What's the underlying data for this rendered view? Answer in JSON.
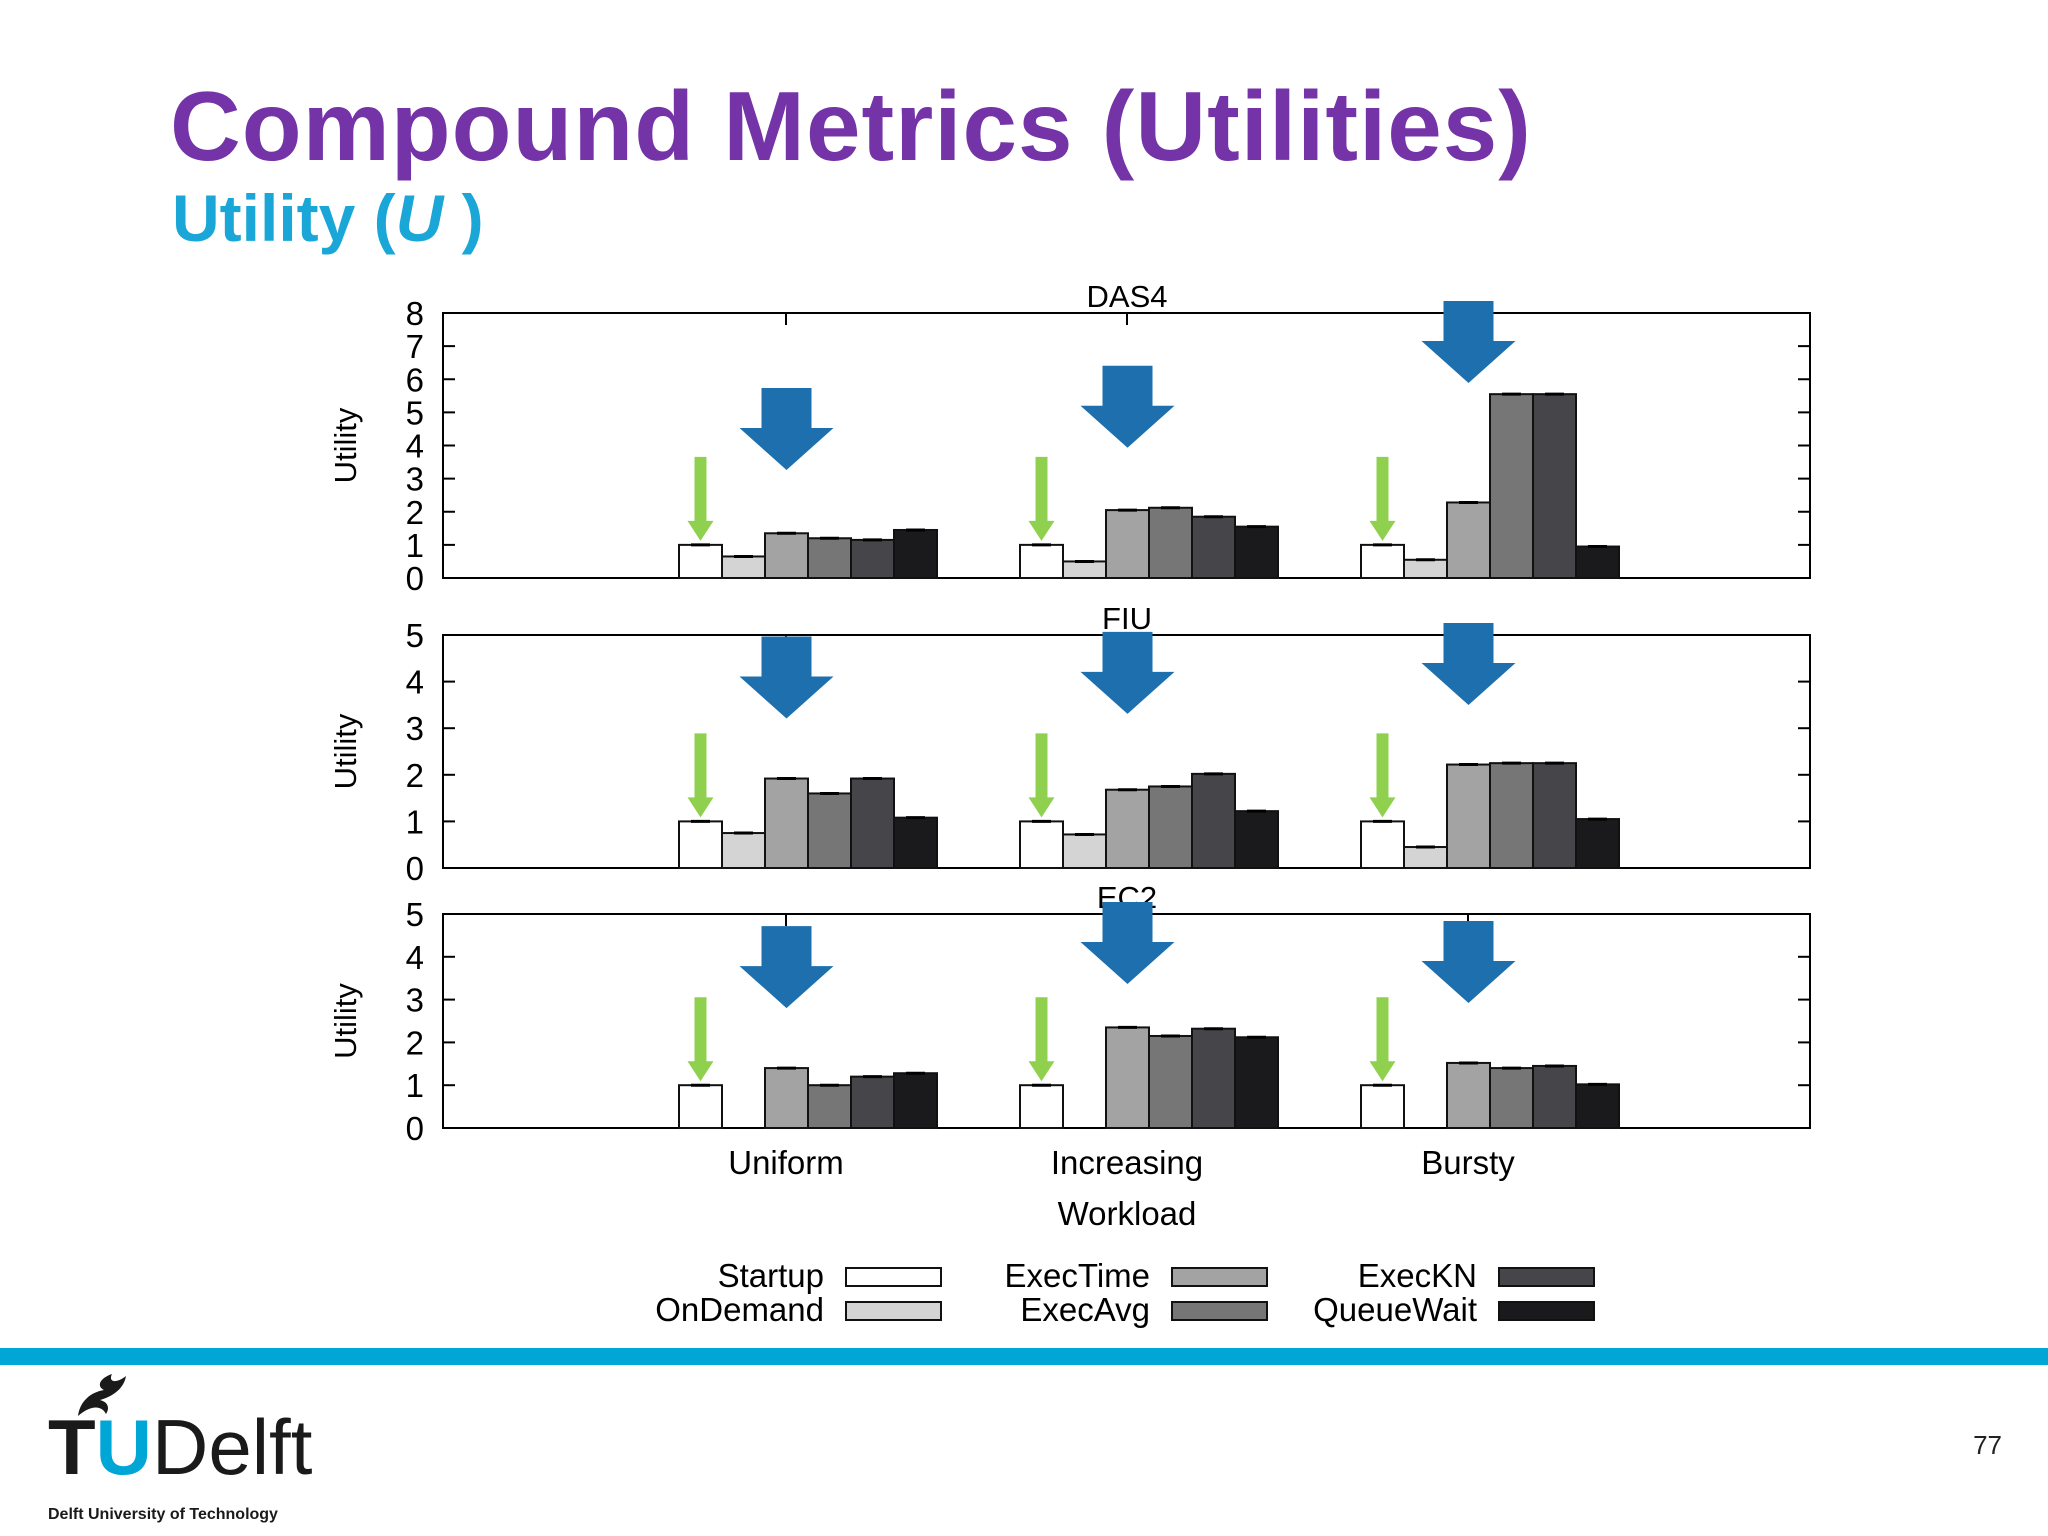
{
  "slide": {
    "title": "Compound Metrics (Utilities)",
    "subtitle_prefix": "Utility (",
    "subtitle_symbol": "U",
    "subtitle_suffix": " )",
    "page_number": "77"
  },
  "logo": {
    "tu_t": "T",
    "tu_u": "U",
    "delft": "Delft",
    "subtitle": "Delft University of Technology",
    "icon": "flame-icon"
  },
  "colors": {
    "title": "#7433a6",
    "subtitle": "#1aa7d8",
    "band": "#00a6d6",
    "blue_arrow": "#1d6fae",
    "green_arrow": "#8fd14f"
  },
  "chart_data": {
    "type": "bar",
    "xlabel": "Workload",
    "ylabel": "Utility",
    "categories": [
      "Uniform",
      "Increasing",
      "Bursty"
    ],
    "series_names": [
      "Startup",
      "OnDemand",
      "ExecTime",
      "ExecAvg",
      "ExecKN",
      "QueueWait"
    ],
    "series_colors": [
      "#ffffff",
      "#d4d4d4",
      "#a3a3a3",
      "#767676",
      "#45454a",
      "#1a1a1c"
    ],
    "legend_position": "bottom",
    "grid": false,
    "error_bars": true,
    "panels": [
      {
        "title": "DAS4",
        "ylim": [
          0,
          8
        ],
        "yticks": [
          "0",
          "1",
          "2",
          "3",
          "4",
          "5",
          "6",
          "7",
          "8"
        ],
        "values": [
          [
            1.0,
            0.65,
            1.35,
            1.2,
            1.15,
            1.45
          ],
          [
            1.0,
            0.5,
            2.05,
            2.12,
            1.85,
            1.55
          ],
          [
            1.0,
            0.55,
            2.28,
            5.55,
            5.55,
            0.95
          ]
        ],
        "highlight_top": [
          false,
          false,
          true
        ]
      },
      {
        "title": "FIU",
        "ylim": [
          0,
          5
        ],
        "yticks": [
          "0",
          "1",
          "2",
          "3",
          "4",
          "5"
        ],
        "values": [
          [
            1.0,
            0.75,
            1.92,
            1.6,
            1.92,
            1.08
          ],
          [
            1.0,
            0.72,
            1.68,
            1.75,
            2.02,
            1.22
          ],
          [
            1.0,
            0.45,
            2.22,
            2.25,
            2.25,
            1.05
          ]
        ],
        "highlight_top": [
          false,
          false,
          false
        ]
      },
      {
        "title": "EC2",
        "ylim": [
          0,
          5
        ],
        "yticks": [
          "0",
          "1",
          "2",
          "3",
          "4",
          "5"
        ],
        "values": [
          [
            1.0,
            0.0,
            1.4,
            1.0,
            1.2,
            1.28
          ],
          [
            1.0,
            0.0,
            2.35,
            2.15,
            2.32,
            2.12
          ],
          [
            1.0,
            0.0,
            1.52,
            1.4,
            1.45,
            1.02
          ]
        ],
        "highlight_top": [
          false,
          false,
          false
        ]
      }
    ]
  }
}
